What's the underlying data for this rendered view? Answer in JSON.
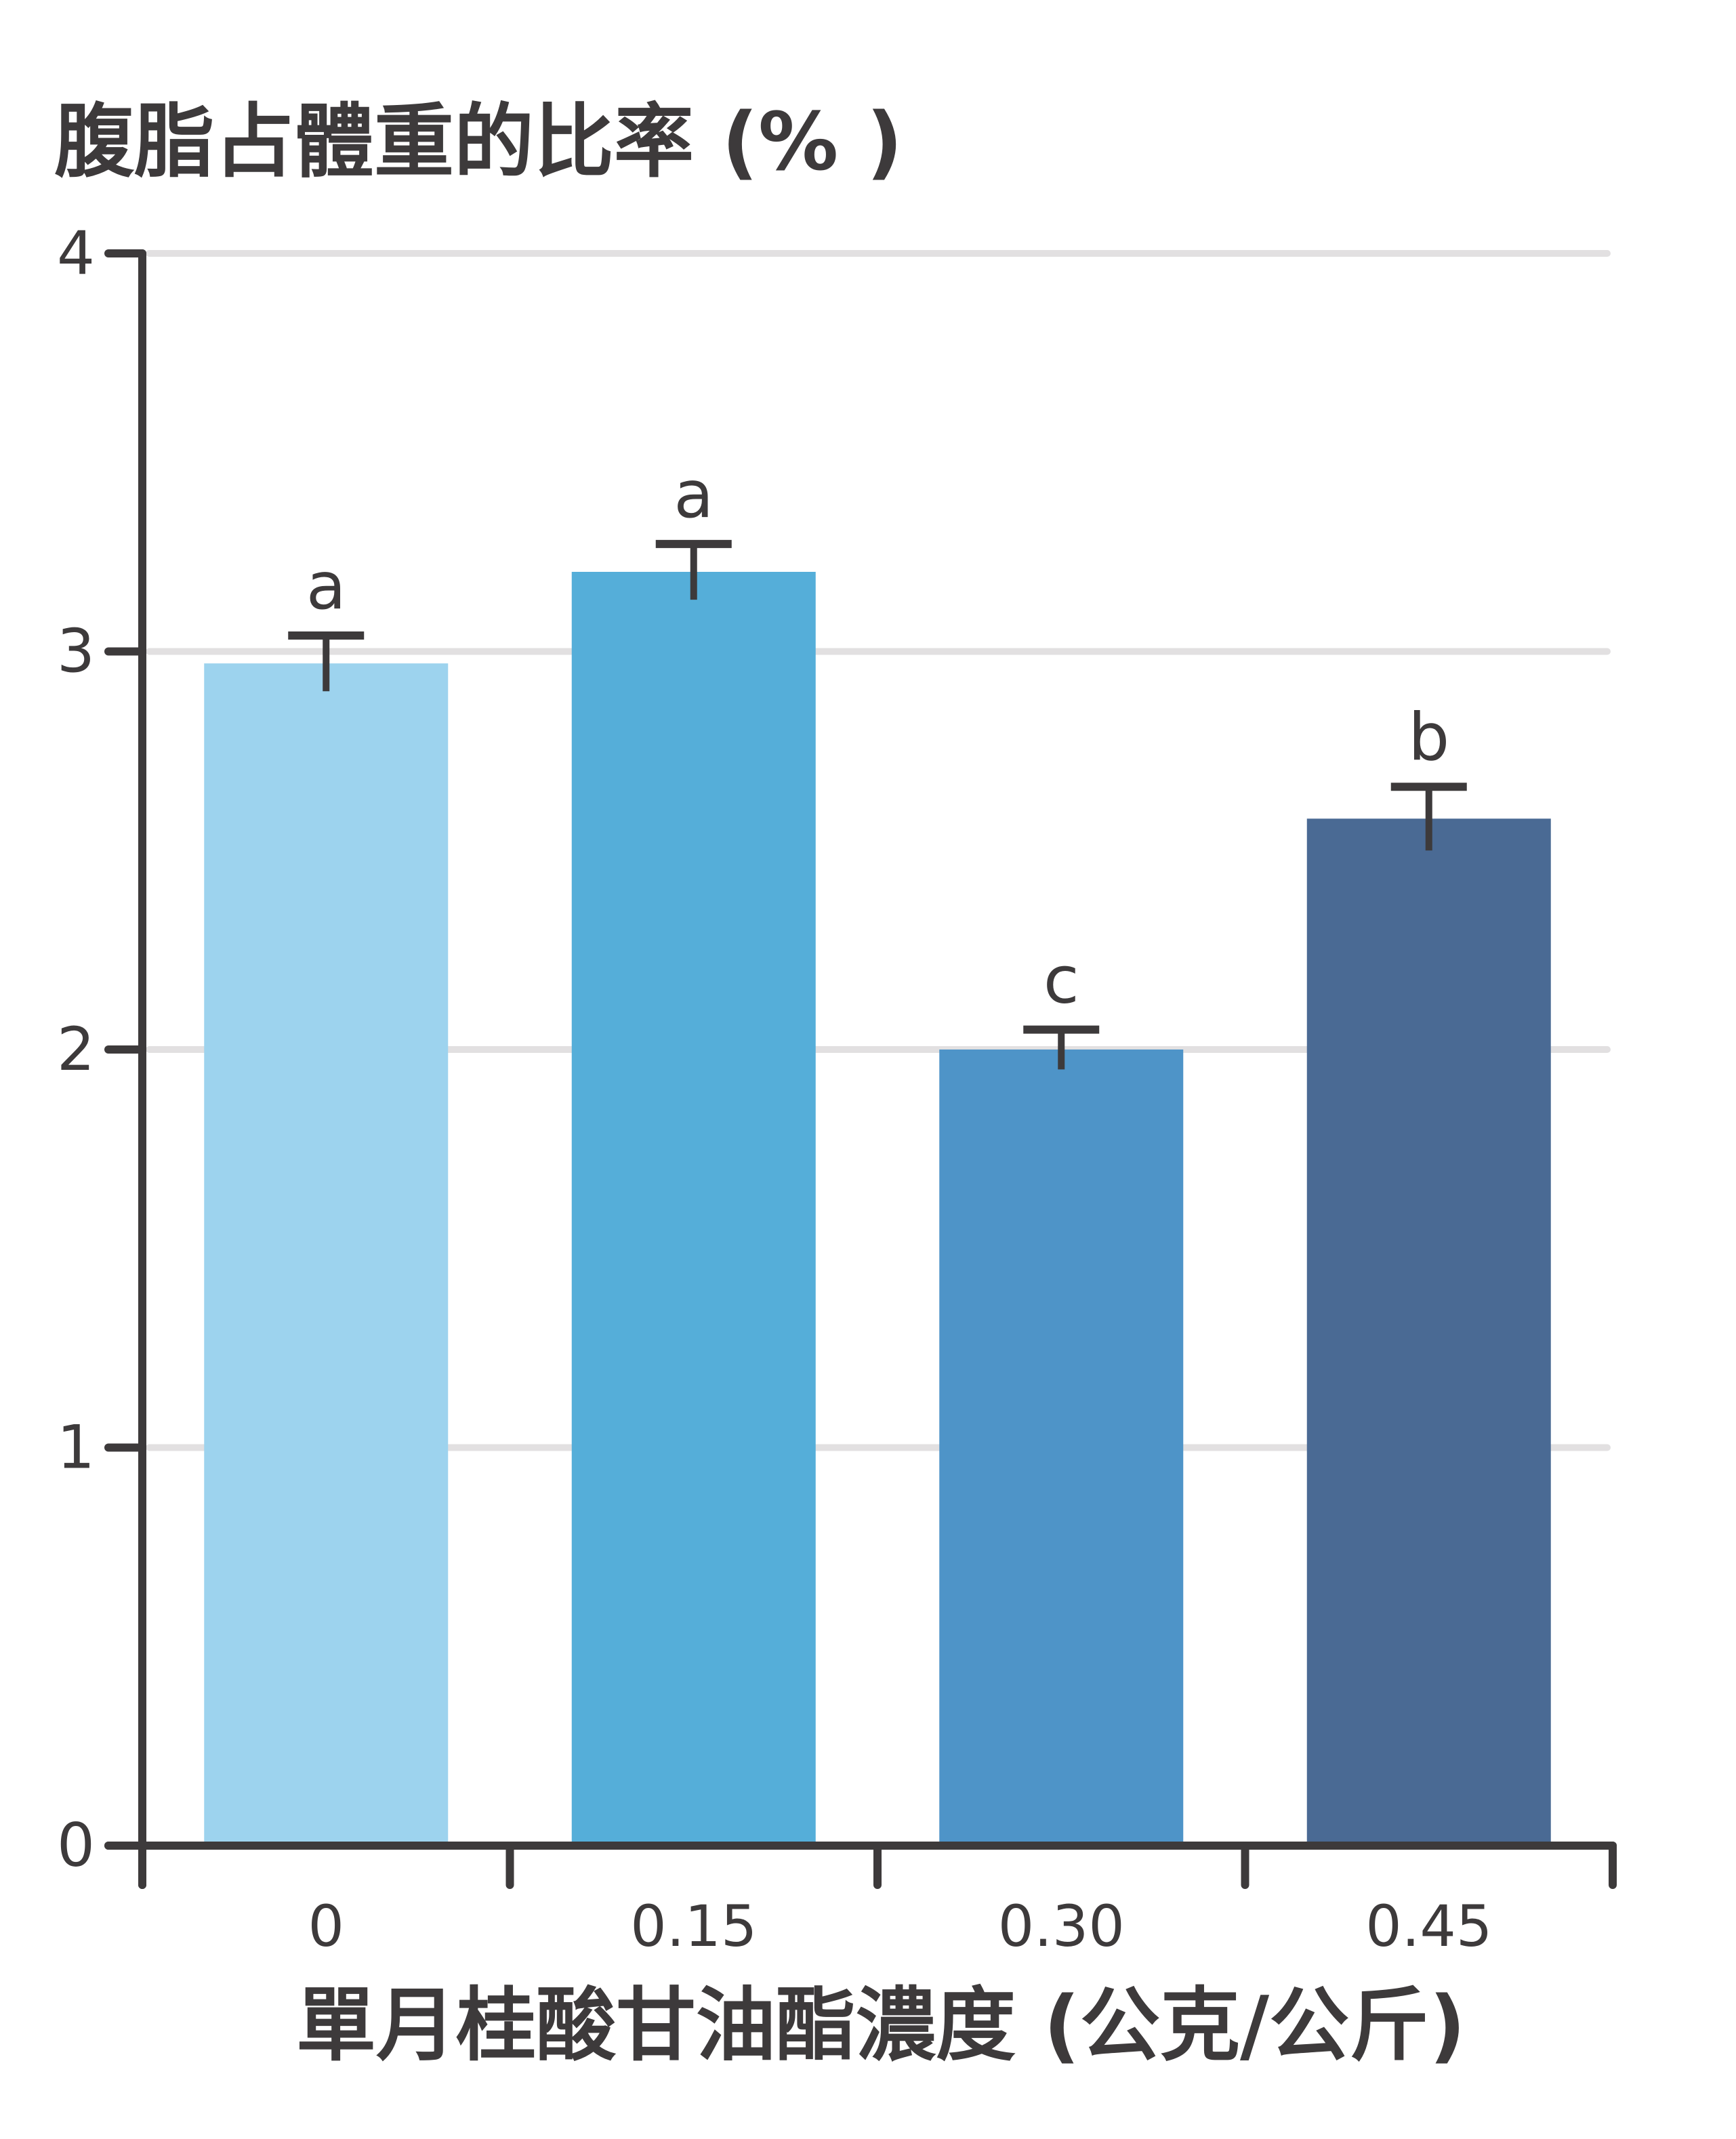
{
  "chart_data": {
    "type": "bar",
    "ylabel": "腹脂占體重的比率 (% )",
    "xlabel": "單月桂酸甘油酯濃度 (公克/公斤)",
    "categories": [
      "0",
      "0.15",
      "0.30",
      "0.45"
    ],
    "values": [
      2.97,
      3.2,
      2.0,
      2.58
    ],
    "errors": [
      0.07,
      0.07,
      0.05,
      0.08
    ],
    "significance_letters": [
      "a",
      "a",
      "c",
      "b"
    ],
    "ylim": [
      0,
      4
    ],
    "yticks": [
      "0",
      "1",
      "2",
      "3",
      "4"
    ],
    "grid": true,
    "bar_colors": [
      "#9dd3ee",
      "#55aed9",
      "#4e94c8",
      "#4a6a94"
    ],
    "axis_color": "#3d3a3b",
    "grid_color": "#e2e0e1"
  }
}
